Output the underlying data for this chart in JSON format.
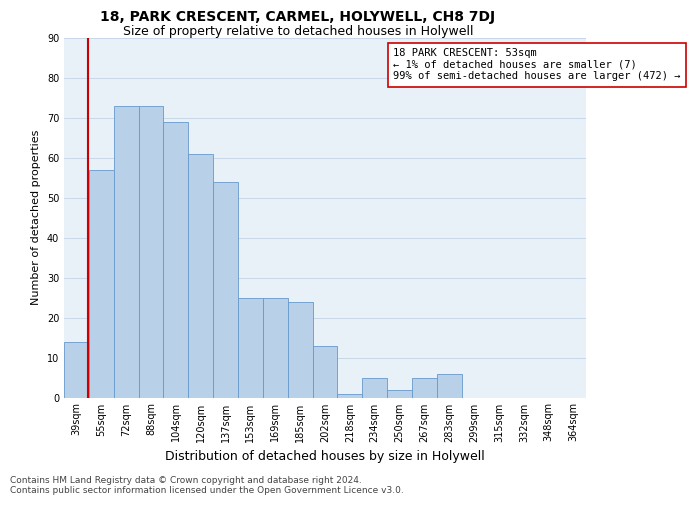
{
  "title1": "18, PARK CRESCENT, CARMEL, HOLYWELL, CH8 7DJ",
  "title2": "Size of property relative to detached houses in Holywell",
  "xlabel": "Distribution of detached houses by size in Holywell",
  "ylabel": "Number of detached properties",
  "categories": [
    "39sqm",
    "55sqm",
    "72sqm",
    "88sqm",
    "104sqm",
    "120sqm",
    "137sqm",
    "153sqm",
    "169sqm",
    "185sqm",
    "202sqm",
    "218sqm",
    "234sqm",
    "250sqm",
    "267sqm",
    "283sqm",
    "299sqm",
    "315sqm",
    "332sqm",
    "348sqm",
    "364sqm"
  ],
  "bar_values": [
    14,
    57,
    73,
    73,
    69,
    61,
    54,
    25,
    25,
    24,
    13,
    1,
    5,
    2,
    5,
    6,
    0,
    0,
    0,
    0,
    0
  ],
  "bar_color": "#b8d0e8",
  "bar_edge_color": "#6699cc",
  "ylim": [
    0,
    90
  ],
  "yticks": [
    0,
    10,
    20,
    30,
    40,
    50,
    60,
    70,
    80,
    90
  ],
  "grid_color": "#c8d8e8",
  "bg_color": "#e8f0f8",
  "annotation_line1": "18 PARK CRESCENT: 53sqm",
  "annotation_line2": "← 1% of detached houses are smaller (7)",
  "annotation_line3": "99% of semi-detached houses are larger (472) →",
  "vline_color": "#cc0000",
  "vline_x_index": 0.47,
  "footnote": "Contains HM Land Registry data © Crown copyright and database right 2024.\nContains public sector information licensed under the Open Government Licence v3.0.",
  "title1_fontsize": 10,
  "title2_fontsize": 9,
  "xlabel_fontsize": 9,
  "ylabel_fontsize": 8,
  "tick_fontsize": 7,
  "annotation_fontsize": 7.5,
  "footnote_fontsize": 6.5
}
